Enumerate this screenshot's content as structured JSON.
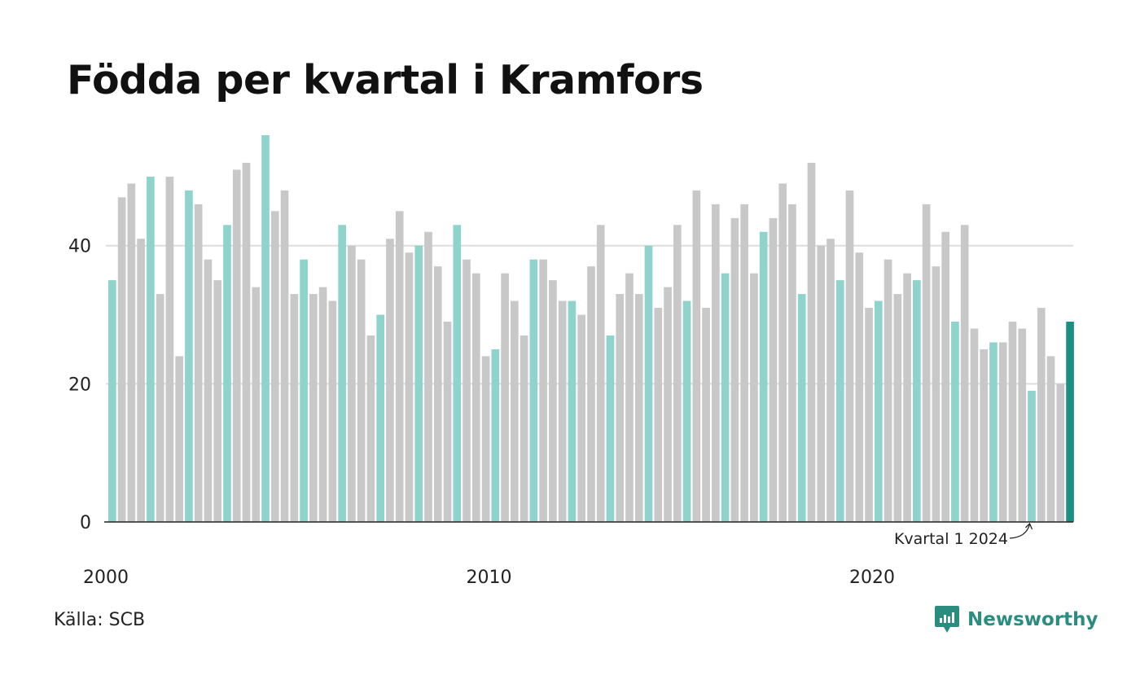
{
  "header": {
    "title": "Födda per kvartal i Kramfors"
  },
  "footer": {
    "source": "Källa: SCB",
    "brand": "Newsworthy"
  },
  "colors": {
    "q1": "#8ed3cc",
    "other": "#c8c8c8",
    "latest": "#1b9184",
    "grid": "#dddddd",
    "axis": "#222222"
  },
  "chart_data": {
    "type": "bar",
    "title": "Födda per kvartal i Kramfors",
    "start_year": 2000,
    "start_quarter": 1,
    "ylim": [
      0,
      56
    ],
    "y_ticks": [
      0,
      20,
      40
    ],
    "x_ticks": [
      {
        "label": "2000",
        "year": 2000
      },
      {
        "label": "2010",
        "year": 2010
      },
      {
        "label": "2020",
        "year": 2020
      }
    ],
    "grid": true,
    "highlight": "Kvartal 1 (teal), senaste kvartalet (mörk teal)",
    "annotation": {
      "text": "Kvartal 1 2024"
    },
    "values": [
      35,
      47,
      49,
      41,
      50,
      33,
      50,
      24,
      48,
      46,
      38,
      35,
      43,
      51,
      52,
      34,
      56,
      45,
      48,
      33,
      38,
      33,
      34,
      32,
      43,
      40,
      38,
      27,
      30,
      41,
      45,
      39,
      40,
      42,
      37,
      29,
      43,
      38,
      36,
      24,
      25,
      36,
      32,
      27,
      38,
      38,
      35,
      32,
      32,
      30,
      37,
      43,
      27,
      33,
      36,
      33,
      40,
      31,
      34,
      43,
      32,
      48,
      31,
      46,
      36,
      44,
      46,
      36,
      42,
      44,
      49,
      46,
      33,
      52,
      40,
      41,
      35,
      48,
      39,
      31,
      32,
      38,
      33,
      36,
      35,
      46,
      37,
      42,
      29,
      43,
      28,
      25,
      26,
      26,
      29,
      28,
      19,
      31,
      24,
      20,
      29
    ]
  }
}
